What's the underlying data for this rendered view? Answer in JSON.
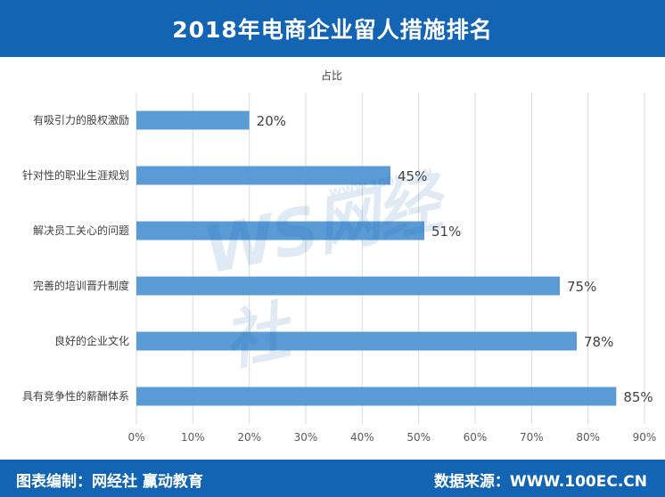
{
  "header": {
    "title": "2018年电商企业留人措施排名"
  },
  "footer": {
    "left_label": "图表编制：网经社  赢动教育",
    "right_label": "数据来源：WWW.100EC.CN"
  },
  "watermark": {
    "logo_text": "WS网经社",
    "url_text": "WWW.100EC.CN"
  },
  "colors": {
    "header_bg": "#1464b4",
    "bar": "#5b9bd5",
    "grid": "#d9d9d9",
    "text": "#404040"
  },
  "chart_data": {
    "type": "bar",
    "orientation": "horizontal",
    "title": "占比",
    "categories": [
      "有吸引力的股权激励",
      "针对性的职业生涯规划",
      "解决员工关心的问题",
      "完善的培训晋升制度",
      "良好的企业文化",
      "具有竞争性的薪酬体系"
    ],
    "values": [
      20,
      45,
      51,
      75,
      78,
      85
    ],
    "value_labels": [
      "20%",
      "45%",
      "51%",
      "75%",
      "78%",
      "85%"
    ],
    "xlim": [
      0,
      90
    ],
    "x_ticks": [
      "0%",
      "10%",
      "20%",
      "30%",
      "40%",
      "50%",
      "60%",
      "70%",
      "80%",
      "90%"
    ],
    "grid": true,
    "legend": "none"
  }
}
